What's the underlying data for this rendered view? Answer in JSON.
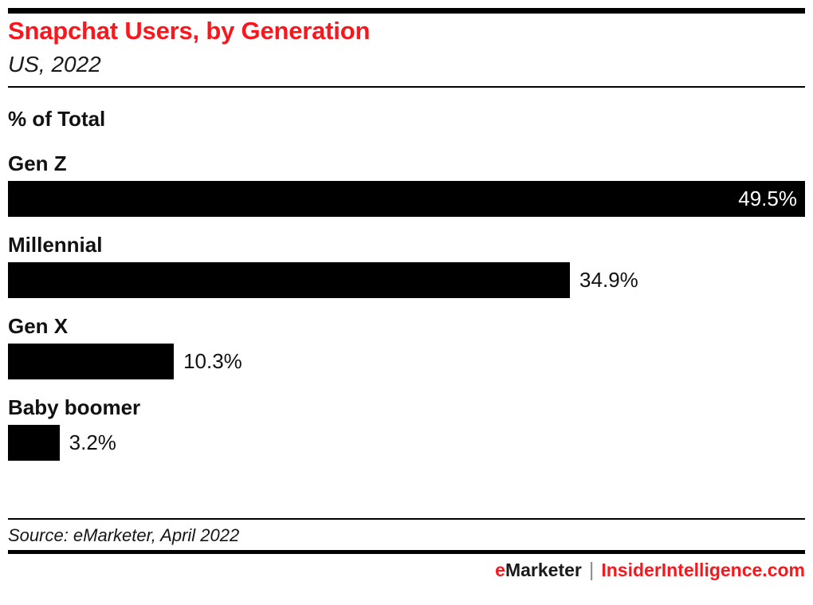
{
  "header": {
    "title": "Snapchat Users, by Generation",
    "subtitle": "US, 2022"
  },
  "colors": {
    "accent_red": "#f8171d",
    "bar_black": "#000000",
    "separator_gray": "#8c8c8c"
  },
  "chart_data": {
    "type": "bar",
    "orientation": "horizontal",
    "title": "Snapchat Users, by Generation",
    "subtitle": "US, 2022",
    "measure_label": "% of Total",
    "categories": [
      "Gen Z",
      "Millennial",
      "Gen X",
      "Baby boomer"
    ],
    "values": [
      49.5,
      34.9,
      10.3,
      3.2
    ],
    "unit": "%",
    "value_labels": [
      "49.5%",
      "34.9%",
      "10.3%",
      "3.2%"
    ],
    "xlim": [
      0,
      49.5
    ],
    "grid": false,
    "legend": false,
    "bar_color": "#000000"
  },
  "footer": {
    "source": "Source: eMarketer, April 2022",
    "brand_e": "e",
    "brand_rest": "Marketer",
    "separator": "|",
    "brand_url": "InsiderIntelligence.com"
  }
}
